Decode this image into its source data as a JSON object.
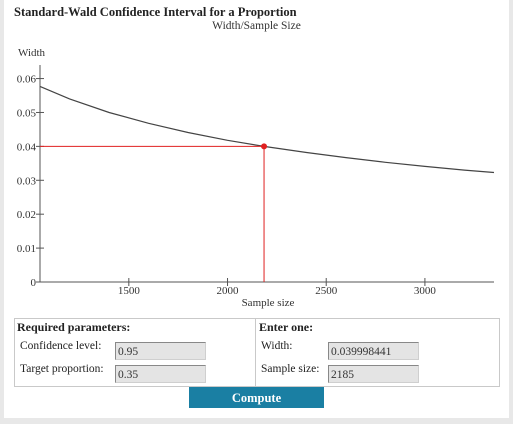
{
  "header": {
    "title": "Standard-Wald Confidence Interval for a Proportion",
    "subtitle": "Width/Sample Size"
  },
  "chart_data": {
    "type": "line",
    "title": "Standard-Wald Confidence Interval for a Proportion",
    "subtitle": "Width/Sample Size",
    "xlabel": "Sample size",
    "ylabel": "Width",
    "xlim": [
      1050,
      3350
    ],
    "ylim": [
      0,
      0.064
    ],
    "x_ticks": [
      1500,
      2000,
      2500,
      3000
    ],
    "y_ticks": [
      0,
      0.01,
      0.02,
      0.03,
      0.04,
      0.05,
      0.06
    ],
    "x_tick_labels": [
      "1500",
      "2000",
      "2500",
      "3000"
    ],
    "y_tick_labels": [
      "0",
      "0.01",
      "0.02",
      "0.03",
      "0.04",
      "0.05",
      "0.06"
    ],
    "series": [
      {
        "x": [
          1050,
          1200,
          1400,
          1600,
          1800,
          2000,
          2185,
          2400,
          2600,
          2800,
          3000,
          3200,
          3350
        ],
        "y": [
          0.0577,
          0.054,
          0.05,
          0.0468,
          0.0441,
          0.0418,
          0.04,
          0.0382,
          0.0367,
          0.0353,
          0.0341,
          0.033,
          0.0323
        ],
        "color": "#444444"
      }
    ],
    "highlight_point": {
      "x": 2185,
      "y": 0.04,
      "color": "#e02020"
    },
    "grid": false
  },
  "params": {
    "required_title": "Required parameters:",
    "confidence_label": "Confidence level:",
    "confidence_value": "0.95",
    "proportion_label": "Target proportion:",
    "proportion_value": "0.35",
    "enter_title": "Enter one:",
    "width_label": "Width:",
    "width_value": "0.039998441",
    "sample_label": "Sample size:",
    "sample_value": "2185"
  },
  "compute_label": "Compute"
}
